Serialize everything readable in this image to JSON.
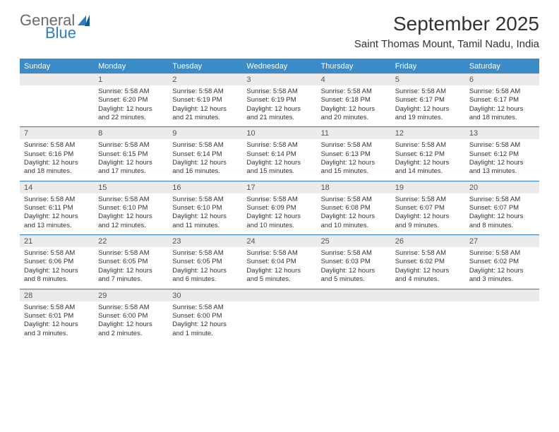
{
  "logo": {
    "general": "General",
    "blue": "Blue"
  },
  "title": "September 2025",
  "location": "Saint Thomas Mount, Tamil Nadu, India",
  "colors": {
    "accent": "#3b8bc9",
    "band": "#eceaea",
    "text": "#333333",
    "logo_gray": "#6b6b6b",
    "logo_blue": "#2a7fc4"
  },
  "day_headers": [
    "Sunday",
    "Monday",
    "Tuesday",
    "Wednesday",
    "Thursday",
    "Friday",
    "Saturday"
  ],
  "weeks": [
    {
      "nums": [
        "",
        "1",
        "2",
        "3",
        "4",
        "5",
        "6"
      ],
      "cells": [
        {
          "empty": true
        },
        {
          "sunrise": "5:58 AM",
          "sunset": "6:20 PM",
          "daylight": "12 hours and 22 minutes."
        },
        {
          "sunrise": "5:58 AM",
          "sunset": "6:19 PM",
          "daylight": "12 hours and 21 minutes."
        },
        {
          "sunrise": "5:58 AM",
          "sunset": "6:19 PM",
          "daylight": "12 hours and 21 minutes."
        },
        {
          "sunrise": "5:58 AM",
          "sunset": "6:18 PM",
          "daylight": "12 hours and 20 minutes."
        },
        {
          "sunrise": "5:58 AM",
          "sunset": "6:17 PM",
          "daylight": "12 hours and 19 minutes."
        },
        {
          "sunrise": "5:58 AM",
          "sunset": "6:17 PM",
          "daylight": "12 hours and 18 minutes."
        }
      ]
    },
    {
      "nums": [
        "7",
        "8",
        "9",
        "10",
        "11",
        "12",
        "13"
      ],
      "cells": [
        {
          "sunrise": "5:58 AM",
          "sunset": "6:16 PM",
          "daylight": "12 hours and 18 minutes."
        },
        {
          "sunrise": "5:58 AM",
          "sunset": "6:15 PM",
          "daylight": "12 hours and 17 minutes."
        },
        {
          "sunrise": "5:58 AM",
          "sunset": "6:14 PM",
          "daylight": "12 hours and 16 minutes."
        },
        {
          "sunrise": "5:58 AM",
          "sunset": "6:14 PM",
          "daylight": "12 hours and 15 minutes."
        },
        {
          "sunrise": "5:58 AM",
          "sunset": "6:13 PM",
          "daylight": "12 hours and 15 minutes."
        },
        {
          "sunrise": "5:58 AM",
          "sunset": "6:12 PM",
          "daylight": "12 hours and 14 minutes."
        },
        {
          "sunrise": "5:58 AM",
          "sunset": "6:12 PM",
          "daylight": "12 hours and 13 minutes."
        }
      ]
    },
    {
      "nums": [
        "14",
        "15",
        "16",
        "17",
        "18",
        "19",
        "20"
      ],
      "cells": [
        {
          "sunrise": "5:58 AM",
          "sunset": "6:11 PM",
          "daylight": "12 hours and 13 minutes."
        },
        {
          "sunrise": "5:58 AM",
          "sunset": "6:10 PM",
          "daylight": "12 hours and 12 minutes."
        },
        {
          "sunrise": "5:58 AM",
          "sunset": "6:10 PM",
          "daylight": "12 hours and 11 minutes."
        },
        {
          "sunrise": "5:58 AM",
          "sunset": "6:09 PM",
          "daylight": "12 hours and 10 minutes."
        },
        {
          "sunrise": "5:58 AM",
          "sunset": "6:08 PM",
          "daylight": "12 hours and 10 minutes."
        },
        {
          "sunrise": "5:58 AM",
          "sunset": "6:07 PM",
          "daylight": "12 hours and 9 minutes."
        },
        {
          "sunrise": "5:58 AM",
          "sunset": "6:07 PM",
          "daylight": "12 hours and 8 minutes."
        }
      ]
    },
    {
      "nums": [
        "21",
        "22",
        "23",
        "24",
        "25",
        "26",
        "27"
      ],
      "cells": [
        {
          "sunrise": "5:58 AM",
          "sunset": "6:06 PM",
          "daylight": "12 hours and 8 minutes."
        },
        {
          "sunrise": "5:58 AM",
          "sunset": "6:05 PM",
          "daylight": "12 hours and 7 minutes."
        },
        {
          "sunrise": "5:58 AM",
          "sunset": "6:05 PM",
          "daylight": "12 hours and 6 minutes."
        },
        {
          "sunrise": "5:58 AM",
          "sunset": "6:04 PM",
          "daylight": "12 hours and 5 minutes."
        },
        {
          "sunrise": "5:58 AM",
          "sunset": "6:03 PM",
          "daylight": "12 hours and 5 minutes."
        },
        {
          "sunrise": "5:58 AM",
          "sunset": "6:02 PM",
          "daylight": "12 hours and 4 minutes."
        },
        {
          "sunrise": "5:58 AM",
          "sunset": "6:02 PM",
          "daylight": "12 hours and 3 minutes."
        }
      ]
    },
    {
      "nums": [
        "28",
        "29",
        "30",
        "",
        "",
        "",
        ""
      ],
      "cells": [
        {
          "sunrise": "5:58 AM",
          "sunset": "6:01 PM",
          "daylight": "12 hours and 3 minutes."
        },
        {
          "sunrise": "5:58 AM",
          "sunset": "6:00 PM",
          "daylight": "12 hours and 2 minutes."
        },
        {
          "sunrise": "5:58 AM",
          "sunset": "6:00 PM",
          "daylight": "12 hours and 1 minute."
        },
        {
          "empty": true
        },
        {
          "empty": true
        },
        {
          "empty": true
        },
        {
          "empty": true
        }
      ]
    }
  ],
  "labels": {
    "sunrise": "Sunrise:",
    "sunset": "Sunset:",
    "daylight": "Daylight:"
  }
}
